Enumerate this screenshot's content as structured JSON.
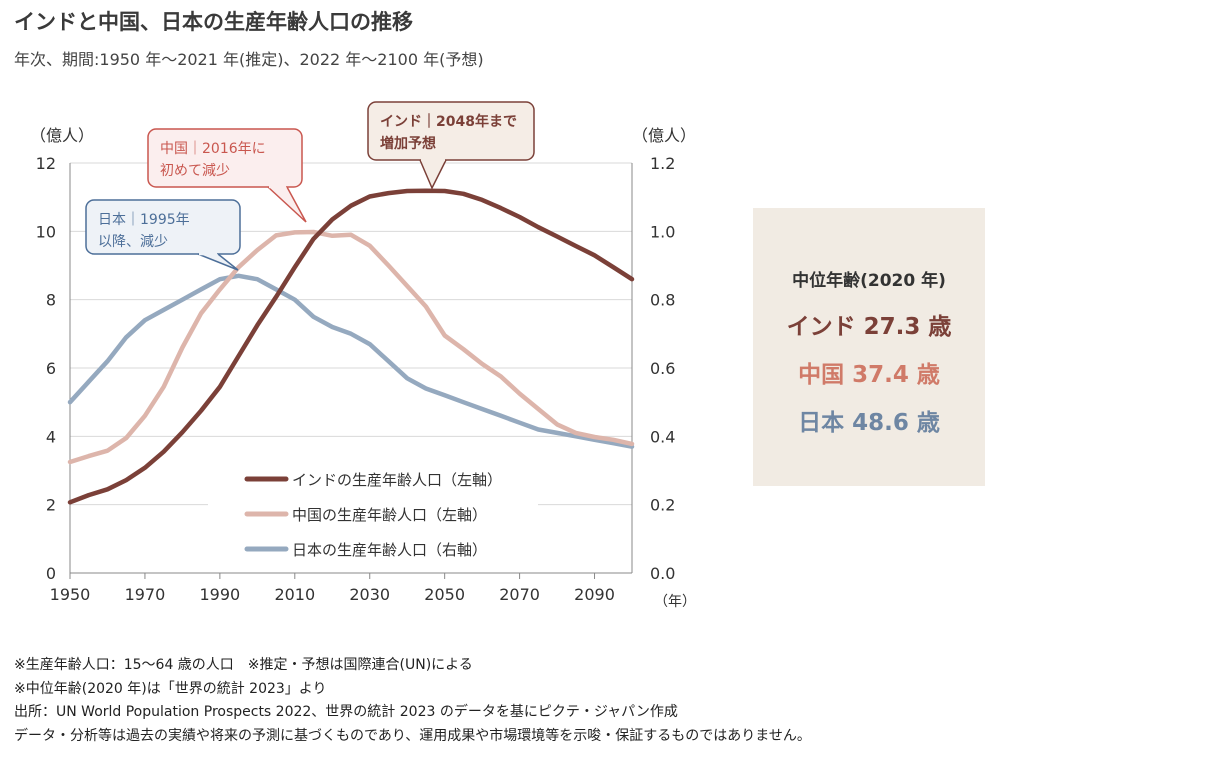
{
  "header": {
    "title": "インドと中国、日本の生産年齢人口の推移",
    "subtitle": "年次、期間:1950 年～2021 年(推定)、2022 年～2100 年(予想)"
  },
  "chart_data": {
    "type": "line",
    "left_axis_unit": "（億人）",
    "right_axis_unit": "（億人）",
    "x_unit": "（年）",
    "xlim": [
      1950,
      2100
    ],
    "ylim_left": [
      0,
      12
    ],
    "ylim_right": [
      0,
      1.2
    ],
    "x_ticks": [
      1950,
      1970,
      1990,
      2010,
      2030,
      2050,
      2070,
      2090
    ],
    "y_ticks_left": [
      "0",
      "2",
      "4",
      "6",
      "8",
      "10",
      "12"
    ],
    "y_ticks_right": [
      "0.0",
      "0.2",
      "0.4",
      "0.6",
      "0.8",
      "1.0",
      "1.2"
    ],
    "grid": true,
    "legend_position": "bottom-center",
    "x": [
      1950,
      1955,
      1960,
      1965,
      1970,
      1975,
      1980,
      1985,
      1990,
      1995,
      2000,
      2005,
      2010,
      2015,
      2020,
      2025,
      2030,
      2035,
      2040,
      2045,
      2050,
      2055,
      2060,
      2065,
      2070,
      2075,
      2080,
      2085,
      2090,
      2095,
      2100
    ],
    "series": [
      {
        "name": "インドの生産年齢人口（左軸）",
        "axis": "left",
        "color": "#7b4038",
        "values": [
          2.07,
          2.28,
          2.45,
          2.72,
          3.08,
          3.55,
          4.12,
          4.75,
          5.45,
          6.35,
          7.25,
          8.08,
          8.95,
          9.78,
          10.35,
          10.75,
          11.02,
          11.12,
          11.18,
          11.19,
          11.18,
          11.1,
          10.92,
          10.68,
          10.42,
          10.12,
          9.85,
          9.57,
          9.3,
          8.95,
          8.6
        ]
      },
      {
        "name": "中国の生産年齢人口（左軸）",
        "axis": "left",
        "color": "#ddb5ab",
        "values": [
          3.25,
          3.42,
          3.58,
          3.95,
          4.6,
          5.45,
          6.6,
          7.6,
          8.3,
          8.95,
          9.45,
          9.88,
          9.97,
          9.98,
          9.87,
          9.9,
          9.58,
          9.0,
          8.4,
          7.8,
          6.95,
          6.55,
          6.12,
          5.75,
          5.25,
          4.8,
          4.35,
          4.1,
          3.98,
          3.9,
          3.78
        ]
      },
      {
        "name": "日本の生産年齢人口（右軸）",
        "axis": "right",
        "color": "#95a9bf",
        "values": [
          0.5,
          0.56,
          0.62,
          0.69,
          0.74,
          0.77,
          0.8,
          0.83,
          0.86,
          0.87,
          0.86,
          0.83,
          0.8,
          0.75,
          0.72,
          0.7,
          0.67,
          0.62,
          0.57,
          0.54,
          0.52,
          0.5,
          0.48,
          0.46,
          0.44,
          0.42,
          0.41,
          0.4,
          0.39,
          0.38,
          0.37
        ]
      }
    ],
    "annotations": [
      {
        "key": "india",
        "lines": [
          "インド｜2048年まで",
          "増加予想"
        ],
        "color": "#7b4038",
        "year": 2048
      },
      {
        "key": "china",
        "lines": [
          "中国｜2016年に",
          "初めて減少"
        ],
        "color": "#c9574f",
        "year": 2016
      },
      {
        "key": "japan",
        "lines": [
          "日本｜1995年",
          "以降、減少"
        ],
        "color": "#4d6f99",
        "year": 1995
      }
    ]
  },
  "median_age": {
    "title": "中位年齢(2020 年)",
    "rows": [
      {
        "label": "インド 27.3 歳",
        "color": "#7b4038"
      },
      {
        "label": "中国 37.4 歳",
        "color": "#d07a68"
      },
      {
        "label": "日本 48.6 歳",
        "color": "#6e86a3"
      }
    ]
  },
  "notes": [
    "※生産年齢人口：15～64 歳の人口　※推定・予想は国際連合(UN)による",
    "※中位年齢(2020 年)は「世界の統計 2023」より",
    "出所：UN World Population Prospects 2022、世界の統計 2023 のデータを基にピクテ・ジャパン作成",
    "データ・分析等は過去の実績や将来の予測に基づくものであり、運用成果や市場環境等を示唆・保証するものではありません。"
  ]
}
